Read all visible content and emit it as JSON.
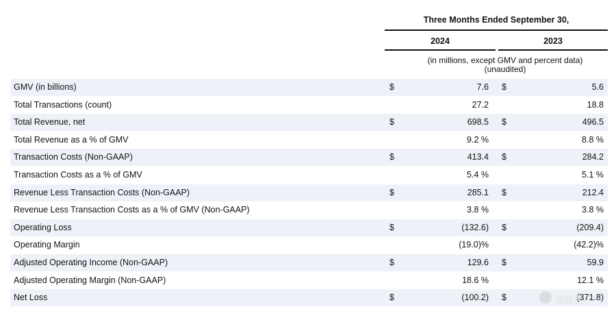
{
  "header": {
    "period": "Three Months Ended September 30,",
    "col_2024": "2024",
    "col_2023": "2023",
    "note_line1": "(in millions, except GMV and percent data)",
    "note_line2": "(unaudited)"
  },
  "rows": [
    {
      "label": "GMV (in billions)",
      "d24": "$",
      "v24": "7.6",
      "d23": "$",
      "v23": "5.6"
    },
    {
      "label": "Total Transactions (count)",
      "d24": "",
      "v24": "27.2",
      "d23": "",
      "v23": "18.8"
    },
    {
      "label": "Total Revenue, net",
      "d24": "$",
      "v24": "698.5",
      "d23": "$",
      "v23": "496.5"
    },
    {
      "label": "Total Revenue as a % of GMV",
      "d24": "",
      "v24": "9.2 %",
      "d23": "",
      "v23": "8.8 %"
    },
    {
      "label": "Transaction Costs (Non-GAAP)",
      "d24": "$",
      "v24": "413.4",
      "d23": "$",
      "v23": "284.2"
    },
    {
      "label": "Transaction Costs as a % of GMV",
      "d24": "",
      "v24": "5.4 %",
      "d23": "",
      "v23": "5.1 %"
    },
    {
      "label": "Revenue Less Transaction Costs (Non-GAAP)",
      "d24": "$",
      "v24": "285.1",
      "d23": "$",
      "v23": "212.4"
    },
    {
      "label": "Revenue Less Transaction Costs as a % of GMV (Non-GAAP)",
      "d24": "",
      "v24": "3.8 %",
      "d23": "",
      "v23": "3.8 %"
    },
    {
      "label": "Operating Loss",
      "d24": "$",
      "v24": "(132.6)",
      "d23": "$",
      "v23": "(209.4)"
    },
    {
      "label": "Operating Margin",
      "d24": "",
      "v24": "(19.0)%",
      "d23": "",
      "v23": "(42.2)%"
    },
    {
      "label": "Adjusted Operating Income (Non-GAAP)",
      "d24": "$",
      "v24": "129.6",
      "d23": "$",
      "v23": "59.9"
    },
    {
      "label": "Adjusted Operating Margin (Non-GAAP)",
      "d24": "",
      "v24": "18.6 %",
      "d23": "",
      "v23": "12.1 %"
    },
    {
      "label": "Net Loss",
      "d24": "$",
      "v24": "(100.2)",
      "d23": "$",
      "v23": "(371.8)"
    }
  ],
  "watermark": {
    "text": "格隆汇",
    "icon": "watermark-logo-icon"
  }
}
